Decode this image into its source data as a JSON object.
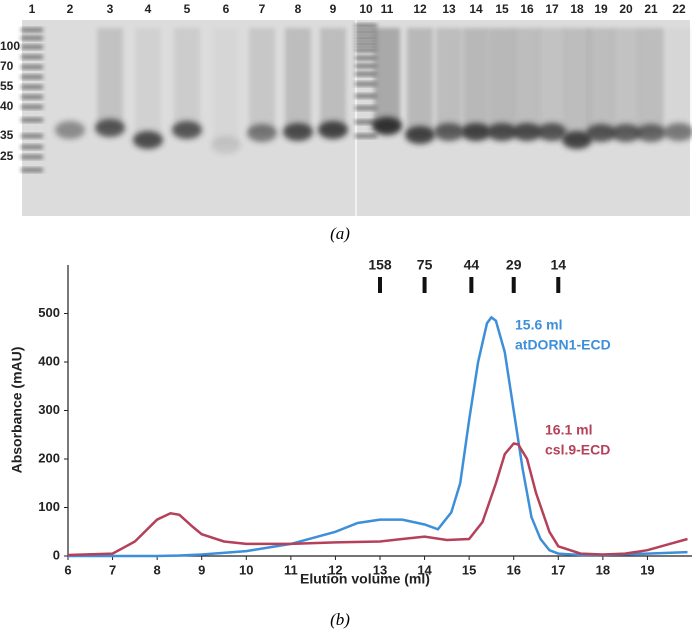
{
  "gel": {
    "lane_labels": [
      "1",
      "2",
      "3",
      "4",
      "5",
      "6",
      "7",
      "8",
      "9",
      "10",
      "11",
      "12",
      "13",
      "14",
      "15",
      "16",
      "17",
      "18",
      "19",
      "20",
      "21",
      "22"
    ],
    "mw_labels": [
      "100",
      "70",
      "55",
      "40",
      "35",
      "25"
    ],
    "caption": "(a)"
  },
  "chart_data": {
    "type": "line",
    "xlabel": "Elution volume (ml)",
    "ylabel": "Absorbance (mAU)",
    "caption": "(b)",
    "xlim": [
      6,
      20
    ],
    "ylim": [
      0,
      600
    ],
    "xticks": [
      6,
      7,
      8,
      9,
      10,
      11,
      12,
      13,
      14,
      15,
      16,
      17,
      18,
      19
    ],
    "yticks": [
      0,
      100,
      200,
      300,
      400,
      500
    ],
    "size_markers": [
      {
        "label": 158,
        "x": 13
      },
      {
        "label": 75,
        "x": 14
      },
      {
        "label": 44,
        "x": 15.05
      },
      {
        "label": 29,
        "x": 16
      },
      {
        "label": 14,
        "x": 17
      }
    ],
    "series": [
      {
        "name": "atDORN1-ECD",
        "peak_label": "15.6 ml",
        "color": "#3d8fd9",
        "x": [
          6,
          7,
          8,
          8.5,
          9,
          10,
          11,
          12,
          12.5,
          13,
          13.5,
          14,
          14.3,
          14.6,
          14.8,
          15,
          15.2,
          15.4,
          15.5,
          15.6,
          15.8,
          16,
          16.2,
          16.4,
          16.6,
          16.8,
          17,
          17.5,
          18,
          19,
          19.9
        ],
        "values": [
          0,
          0,
          0,
          1,
          3,
          10,
          25,
          50,
          68,
          75,
          75,
          65,
          55,
          90,
          150,
          280,
          400,
          480,
          492,
          485,
          420,
          300,
          180,
          80,
          35,
          12,
          5,
          2,
          2,
          5,
          8
        ]
      },
      {
        "name": "csl.9-ECD",
        "peak_label": "16.1 ml",
        "color": "#b5405a",
        "x": [
          6,
          7,
          7.5,
          8,
          8.3,
          8.5,
          8.8,
          9,
          9.5,
          10,
          11,
          12,
          13,
          13.5,
          14,
          14.5,
          15,
          15.3,
          15.6,
          15.8,
          16,
          16.1,
          16.3,
          16.5,
          16.8,
          17,
          17.5,
          18,
          18.5,
          19,
          19.5,
          19.9
        ],
        "values": [
          2,
          5,
          30,
          75,
          88,
          85,
          60,
          45,
          30,
          25,
          25,
          28,
          30,
          35,
          40,
          33,
          35,
          70,
          150,
          210,
          232,
          230,
          200,
          130,
          50,
          20,
          5,
          3,
          5,
          12,
          25,
          35
        ]
      }
    ]
  }
}
